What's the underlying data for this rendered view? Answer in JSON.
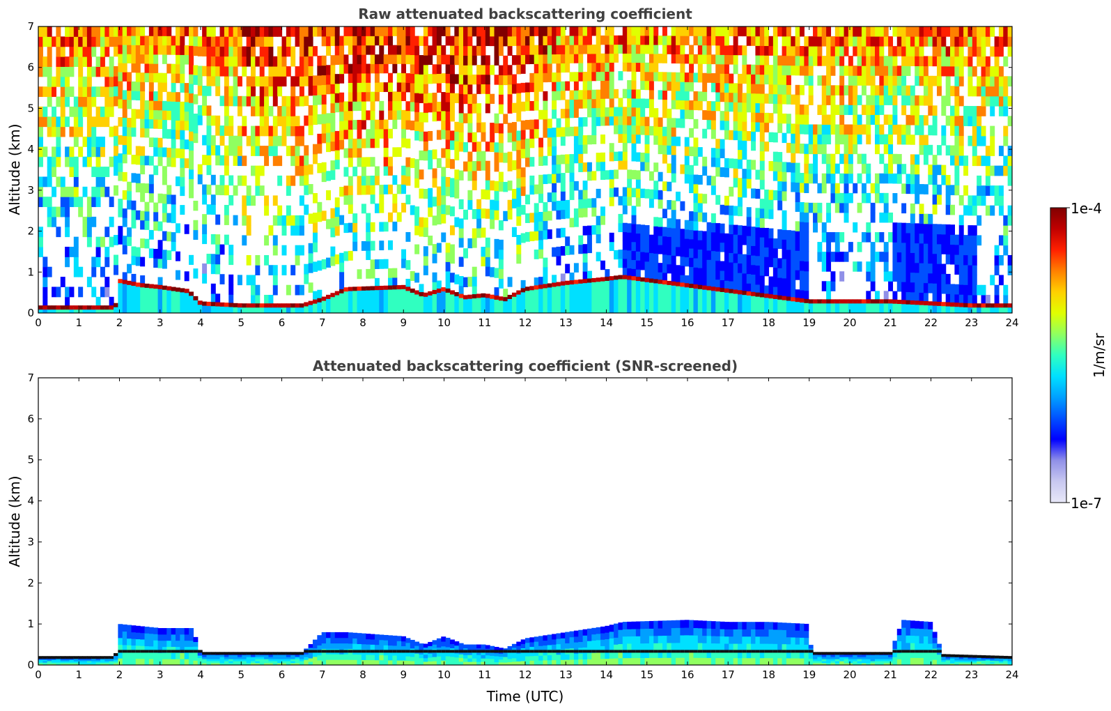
{
  "chart_data": [
    {
      "type": "heatmap",
      "title": "Raw attenuated backscattering coefficient",
      "xlabel": "",
      "ylabel": "Altitude (km)",
      "xlim": [
        0,
        24
      ],
      "ylim": [
        0,
        7
      ],
      "x_ticks": [
        0,
        1,
        2,
        3,
        4,
        5,
        6,
        7,
        8,
        9,
        10,
        11,
        12,
        13,
        14,
        15,
        16,
        17,
        18,
        19,
        20,
        21,
        22,
        23,
        24
      ],
      "y_ticks": [
        0,
        1,
        2,
        3,
        4,
        5,
        6,
        7
      ],
      "grid": false,
      "features": {
        "surface_layer_top_km": [
          [
            0,
            0.15
          ],
          [
            1.9,
            0.15
          ],
          [
            2,
            0.8
          ],
          [
            2.5,
            0.7
          ],
          [
            3,
            0.65
          ],
          [
            3.7,
            0.55
          ],
          [
            4,
            0.25
          ],
          [
            5,
            0.2
          ],
          [
            6.5,
            0.2
          ],
          [
            7,
            0.35
          ],
          [
            7.6,
            0.6
          ],
          [
            9,
            0.65
          ],
          [
            9.5,
            0.45
          ],
          [
            10,
            0.6
          ],
          [
            10.5,
            0.4
          ],
          [
            11,
            0.45
          ],
          [
            11.5,
            0.35
          ],
          [
            12,
            0.6
          ],
          [
            13,
            0.75
          ],
          [
            14,
            0.85
          ],
          [
            14.4,
            0.9
          ],
          [
            19,
            0.3
          ],
          [
            20,
            0.3
          ],
          [
            21,
            0.3
          ],
          [
            22,
            0.25
          ],
          [
            23,
            0.2
          ],
          [
            24,
            0.2
          ]
        ],
        "noise_high_hours": [
          [
            5,
            12.5
          ]
        ],
        "dense_lower_signal_hours": [
          [
            14.4,
            19
          ],
          [
            21.1,
            23.1
          ]
        ]
      }
    },
    {
      "type": "heatmap",
      "title": "Attenuated backscattering coefficient (SNR-screened)",
      "xlabel": "Time (UTC)",
      "ylabel": "Altitude (km)",
      "xlim": [
        0,
        24
      ],
      "ylim": [
        0,
        7
      ],
      "x_ticks": [
        0,
        1,
        2,
        3,
        4,
        5,
        6,
        7,
        8,
        9,
        10,
        11,
        12,
        13,
        14,
        15,
        16,
        17,
        18,
        19,
        20,
        21,
        22,
        23,
        24
      ],
      "y_ticks": [
        0,
        1,
        2,
        3,
        4,
        5,
        6,
        7
      ],
      "grid": false,
      "features": {
        "signal_top_km": [
          [
            0,
            0.2
          ],
          [
            1.9,
            0.2
          ],
          [
            2,
            1.0
          ],
          [
            3,
            0.9
          ],
          [
            3.8,
            0.9
          ],
          [
            4,
            0.3
          ],
          [
            6.5,
            0.3
          ],
          [
            7,
            0.8
          ],
          [
            7.6,
            0.8
          ],
          [
            9,
            0.7
          ],
          [
            9.5,
            0.5
          ],
          [
            10,
            0.7
          ],
          [
            10.5,
            0.5
          ],
          [
            11,
            0.5
          ],
          [
            11.5,
            0.4
          ],
          [
            12,
            0.65
          ],
          [
            13,
            0.8
          ],
          [
            14,
            0.95
          ],
          [
            14.4,
            1.05
          ],
          [
            16,
            1.1
          ],
          [
            17,
            1.05
          ],
          [
            18,
            1.05
          ],
          [
            19,
            1.0
          ],
          [
            19.05,
            0.3
          ],
          [
            21,
            0.3
          ],
          [
            21.3,
            1.1
          ],
          [
            22,
            1.05
          ],
          [
            22.3,
            0.25
          ],
          [
            24,
            0.2
          ]
        ]
      }
    }
  ],
  "colorbar": {
    "label": "1/m/sr",
    "max_label": "1e-4",
    "min_label": "1e-7",
    "colors": [
      "#e8e8f8",
      "#c8c8f0",
      "#9090e8",
      "#0000ff",
      "#0050ff",
      "#00a0ff",
      "#00e0ff",
      "#30ffc0",
      "#90ff60",
      "#e0ff00",
      "#ffd000",
      "#ff8000",
      "#ff2000",
      "#c00000",
      "#800000"
    ]
  }
}
